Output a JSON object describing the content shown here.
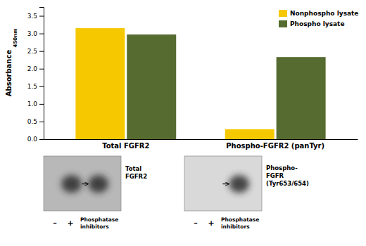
{
  "chart_data": {
    "type": "bar",
    "categories": [
      "Total FGFR2",
      "Phospho-FGFR2 (panTyr)"
    ],
    "series": [
      {
        "name": "Nonphospho lysate",
        "color": "#F5C800",
        "values": [
          3.15,
          0.28
        ]
      },
      {
        "name": "Phospho lysate",
        "color": "#556B2F",
        "values": [
          2.97,
          2.33
        ]
      }
    ],
    "y_label": "Absorbance",
    "ylim": [
      0,
      3.75
    ],
    "yticks": [
      {
        "value": 0,
        "label": "0.0"
      },
      0.5,
      {
        "value": 1.0,
        "label": "1.0"
      },
      1.5,
      {
        "value": 2.0,
        "label": "2.0"
      },
      2.5,
      {
        "value": 3.0,
        "label": "3.0"
      },
      3.5
    ],
    "legend": "upper right",
    "annotations": [
      "450nm",
      "Total\nFGFR2",
      "–",
      "+",
      "Phosphatase\ninhibitors",
      "Phospho-\nFGFR\n(Tyr653/654)",
      "–",
      "+",
      "Phosphatase\ninhibitors"
    ]
  }
}
